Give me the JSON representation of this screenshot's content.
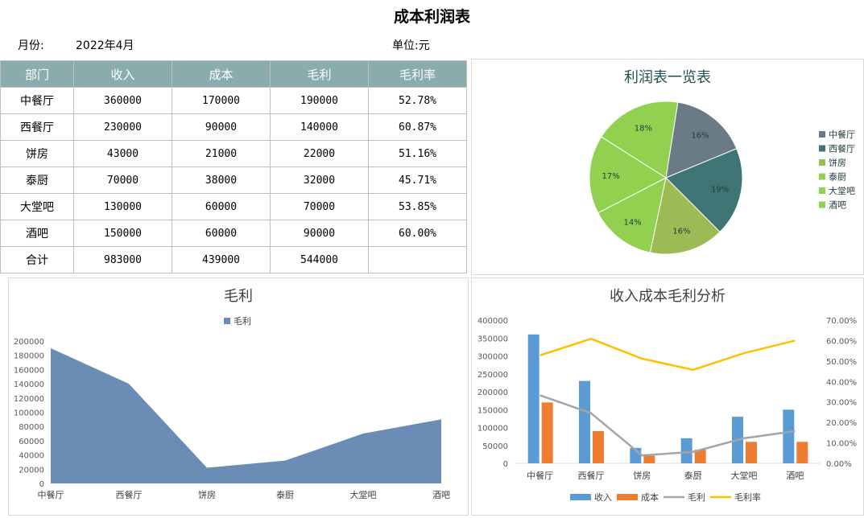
{
  "header": {
    "title": "成本利润表",
    "month_label": "月份:",
    "month_value": "2022年4月",
    "unit_label": "单位:元"
  },
  "table": {
    "columns": [
      "部门",
      "收入",
      "成本",
      "毛利",
      "毛利率"
    ],
    "rows": [
      [
        "中餐厅",
        "360000",
        "170000",
        "190000",
        "52.78%"
      ],
      [
        "西餐厅",
        "230000",
        "90000",
        "140000",
        "60.87%"
      ],
      [
        "饼房",
        "43000",
        "21000",
        "22000",
        "51.16%"
      ],
      [
        "泰厨",
        "70000",
        "38000",
        "32000",
        "45.71%"
      ],
      [
        "大堂吧",
        "130000",
        "60000",
        "70000",
        "53.85%"
      ],
      [
        "酒吧",
        "150000",
        "60000",
        "90000",
        "60.00%"
      ],
      [
        "合计",
        "983000",
        "439000",
        "544000",
        ""
      ]
    ],
    "header_color": "#8aacac"
  },
  "chart_data": [
    {
      "type": "pie",
      "title": "利润表一览表",
      "categories": [
        "中餐厅",
        "西餐厅",
        "饼房",
        "泰厨",
        "大堂吧",
        "酒吧"
      ],
      "values": [
        52.78,
        60.87,
        51.16,
        45.71,
        53.85,
        60.0
      ],
      "labels": [
        "16%",
        "19%",
        "16%",
        "14%",
        "17%",
        "18%"
      ],
      "colors": [
        "#6b7b85",
        "#3f7575",
        "#9dbb55",
        "#92d050",
        "#92d050",
        "#92d050"
      ],
      "legend_position": "right"
    },
    {
      "type": "area",
      "title": "毛利",
      "categories": [
        "中餐厅",
        "西餐厅",
        "饼房",
        "泰厨",
        "大堂吧",
        "酒吧"
      ],
      "series": [
        {
          "name": "毛利",
          "values": [
            190000,
            140000,
            22000,
            32000,
            70000,
            90000
          ],
          "color": "#6b8cb5"
        }
      ],
      "yticks": [
        0,
        20000,
        40000,
        60000,
        80000,
        100000,
        120000,
        140000,
        160000,
        180000,
        200000
      ],
      "ylim": [
        0,
        200000
      ],
      "legend_position": "top",
      "grid": false
    },
    {
      "type": "bar",
      "title": "收入成本毛利分析",
      "categories": [
        "中餐厅",
        "西餐厅",
        "饼房",
        "泰厨",
        "大堂吧",
        "酒吧"
      ],
      "series": [
        {
          "name": "收入",
          "kind": "bar",
          "axis": "primary",
          "values": [
            360000,
            230000,
            43000,
            70000,
            130000,
            150000
          ],
          "color": "#5b9bd5"
        },
        {
          "name": "成本",
          "kind": "bar",
          "axis": "primary",
          "values": [
            170000,
            90000,
            21000,
            38000,
            60000,
            60000
          ],
          "color": "#ed7d31"
        },
        {
          "name": "毛利",
          "kind": "line",
          "axis": "primary",
          "values": [
            190000,
            140000,
            22000,
            32000,
            70000,
            90000
          ],
          "color": "#a5a5a5"
        },
        {
          "name": "毛利率",
          "kind": "line",
          "axis": "secondary",
          "values": [
            0.5278,
            0.6087,
            0.5116,
            0.4571,
            0.5385,
            0.6
          ],
          "color": "#ffc000"
        }
      ],
      "yticks": [
        0,
        50000,
        100000,
        150000,
        200000,
        250000,
        300000,
        350000,
        400000
      ],
      "ylim": [
        0,
        400000
      ],
      "y2ticks": [
        "0.00%",
        "10.00%",
        "20.00%",
        "30.00%",
        "40.00%",
        "50.00%",
        "60.00%",
        "70.00%"
      ],
      "y2lim": [
        0,
        0.7
      ],
      "legend_position": "bottom",
      "grid": false
    }
  ]
}
